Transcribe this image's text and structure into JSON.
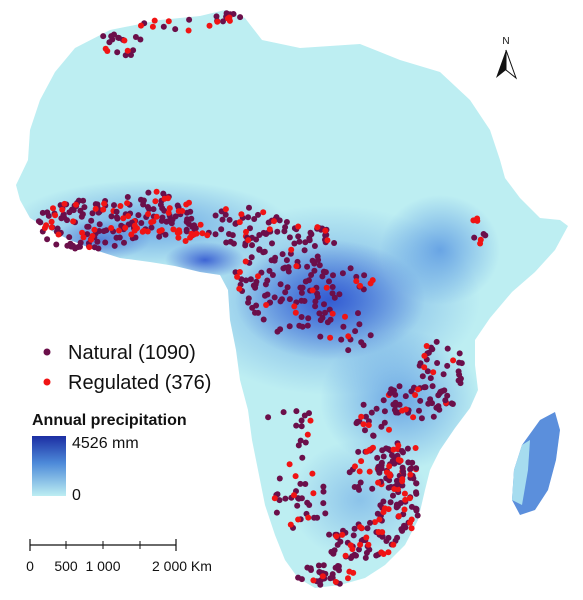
{
  "legend": {
    "natural_label": "Natural (1090)",
    "regulated_label": "Regulated (376)",
    "natural_color": "#6b0f4a",
    "regulated_color": "#f01414"
  },
  "precipitation": {
    "title": "Annual precipitation",
    "max_label": "4526 mm",
    "min_label": "0",
    "color_low": "#bdeef2",
    "color_high": "#1c2ea3"
  },
  "scale_bar": {
    "labels": [
      "0",
      "500",
      "1 000",
      "2 000 Km"
    ]
  },
  "north_arrow": {
    "label": "N"
  }
}
